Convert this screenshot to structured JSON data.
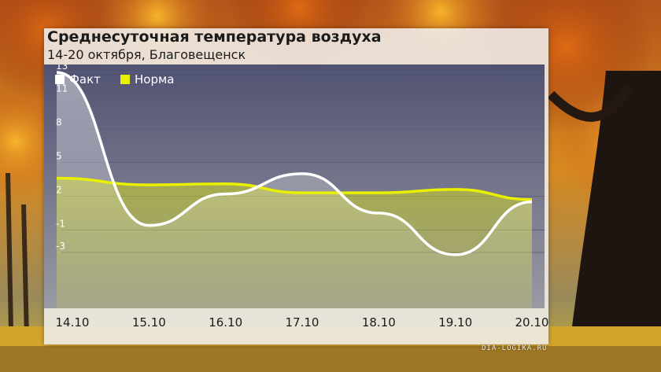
{
  "header": {
    "title": "Среднесуточная температура воздуха",
    "subtitle": "14-20 октября, Благовещенск"
  },
  "credit": "DIA-LOGIKA.RU",
  "colors": {
    "fact": "#ffffff",
    "norm": "#e8f000",
    "plot_bg_top": "#505272",
    "plot_bg_bottom": "#9a9aa4"
  },
  "chart_data": {
    "type": "line",
    "categories": [
      "14.10",
      "15.10",
      "16.10",
      "17.10",
      "18.10",
      "19.10",
      "20.10"
    ],
    "series": [
      {
        "name": "Факт",
        "values": [
          13,
          -0.6,
          2.2,
          4.0,
          0.5,
          -3.2,
          1.5
        ]
      },
      {
        "name": "Норма",
        "values": [
          3.6,
          3.0,
          3.1,
          2.3,
          2.3,
          2.6,
          1.7
        ]
      }
    ],
    "yticks": [
      "13",
      "11",
      "8",
      "5",
      "2",
      "-1",
      "-3"
    ],
    "ylim": [
      -4,
      14
    ],
    "grid": true,
    "legend": "top-left"
  }
}
